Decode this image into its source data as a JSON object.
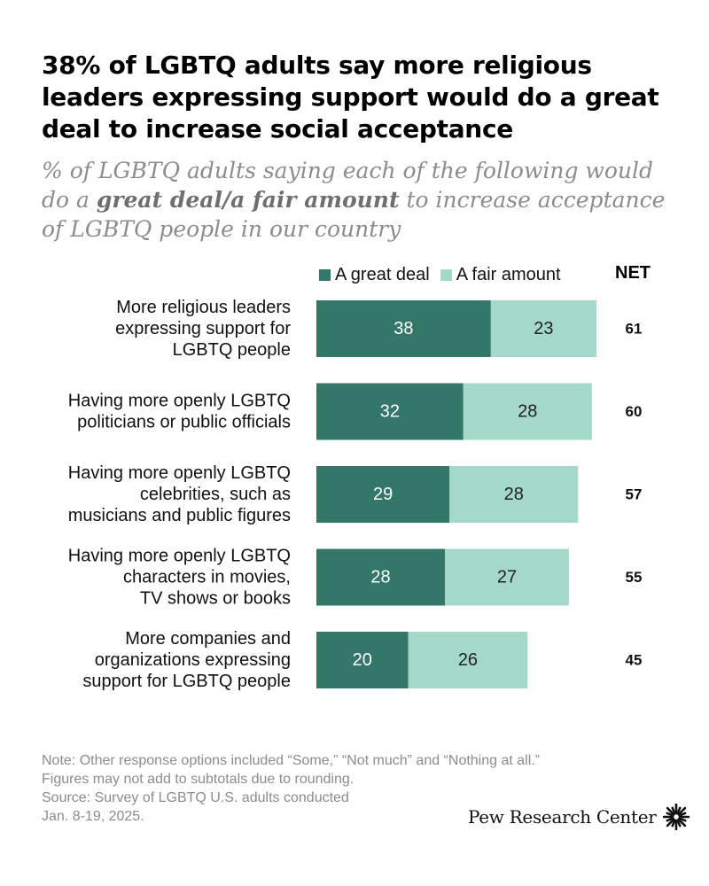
{
  "title": "38% of LGBTQ adults say more religious leaders expressing support would do a great deal to increase social acceptance",
  "subtitle": {
    "pre": "% of LGBTQ adults saying each of the following would do a ",
    "emphasis": "great deal/a fair amount",
    "post": " to increase acceptance of LGBTQ people in our country"
  },
  "legend": {
    "great_deal": "A great deal",
    "fair_amount": "A fair amount",
    "net": "NET"
  },
  "colors": {
    "great_deal": "#33776a",
    "fair_amount": "#a3d8ca",
    "great_deal_text": "#ffffff",
    "fair_amount_text": "#222222"
  },
  "chart_data": {
    "type": "bar",
    "orientation": "horizontal",
    "stacked": true,
    "categories": [
      [
        "More religious leaders",
        "expressing support for",
        "LGBTQ people"
      ],
      [
        "Having more openly LGBTQ",
        "politicians or public officials"
      ],
      [
        "Having more openly LGBTQ",
        "celebrities, such as",
        "musicians and public figures"
      ],
      [
        "Having more openly LGBTQ",
        "characters in movies,",
        "TV shows or books"
      ],
      [
        "More companies and",
        "organizations expressing",
        "support for LGBTQ people"
      ]
    ],
    "series": [
      {
        "name": "A great deal",
        "values": [
          38,
          32,
          29,
          28,
          20
        ]
      },
      {
        "name": "A fair amount",
        "values": [
          23,
          28,
          28,
          27,
          26
        ]
      }
    ],
    "net": [
      61,
      60,
      57,
      55,
      45
    ],
    "xlim": [
      0,
      100
    ]
  },
  "note": [
    "Note: Other response options included “Some,” “Not much” and “Nothing at all.”",
    "Figures may not add to subtotals due to rounding.",
    "Source: Survey of LGBTQ U.S. adults conducted",
    "Jan. 8-19, 2025."
  ],
  "brand": "Pew Research Center",
  "brand_icon": "pew-sunburst-icon"
}
